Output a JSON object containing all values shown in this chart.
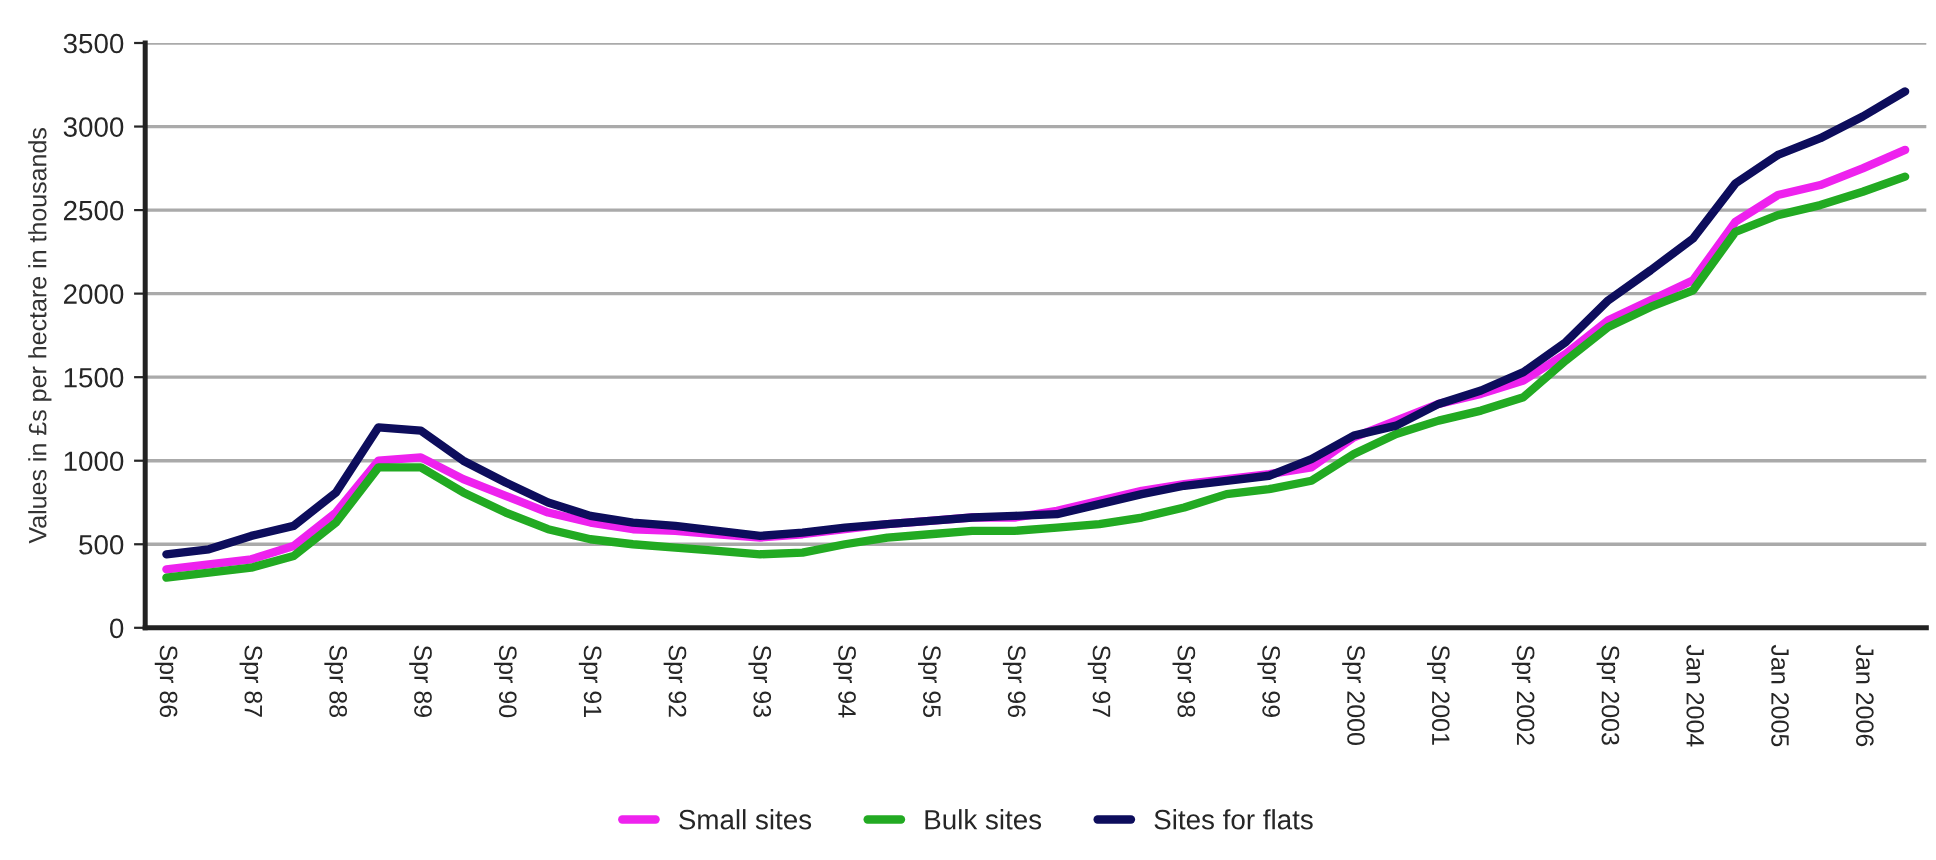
{
  "chart_data": {
    "type": "line",
    "ylabel": "Values in £s per hectare in thousands",
    "categories": [
      "Spr 86",
      null,
      "Spr 87",
      null,
      "Spr 88",
      null,
      "Spr 89",
      null,
      "Spr 90",
      null,
      "Spr 91",
      null,
      "Spr 92",
      null,
      "Spr 93",
      null,
      "Spr 94",
      null,
      "Spr 95",
      null,
      "Spr 96",
      null,
      "Spr 97",
      null,
      "Spr 98",
      null,
      "Spr 99",
      null,
      "Spr 2000",
      null,
      "Spr 2001",
      null,
      "Spr 2002",
      null,
      "Spr 2003",
      null,
      "Jan 2004",
      null,
      "Jan 2005",
      null,
      "Jan 2006",
      null
    ],
    "series": [
      {
        "name": "Small sites",
        "color": "#ee22ee",
        "values": [
          350,
          380,
          410,
          490,
          690,
          1000,
          1020,
          890,
          790,
          690,
          630,
          590,
          580,
          560,
          540,
          560,
          590,
          620,
          640,
          660,
          660,
          700,
          760,
          820,
          860,
          890,
          920,
          960,
          1140,
          1240,
          1340,
          1400,
          1480,
          1640,
          1840,
          1960,
          2080,
          2430,
          2590,
          2650,
          2750,
          2860
        ]
      },
      {
        "name": "Bulk sites",
        "color": "#22aa22",
        "values": [
          300,
          330,
          360,
          430,
          630,
          960,
          960,
          810,
          690,
          590,
          530,
          500,
          480,
          460,
          440,
          450,
          500,
          540,
          560,
          580,
          580,
          600,
          620,
          660,
          720,
          800,
          830,
          880,
          1040,
          1160,
          1240,
          1300,
          1380,
          1600,
          1800,
          1920,
          2020,
          2370,
          2470,
          2530,
          2610,
          2700
        ]
      },
      {
        "name": "Sites for flats",
        "color": "#0d0d5c",
        "values": [
          440,
          470,
          550,
          610,
          810,
          1200,
          1180,
          1000,
          870,
          750,
          670,
          630,
          610,
          580,
          550,
          570,
          600,
          620,
          640,
          660,
          670,
          680,
          740,
          800,
          850,
          880,
          910,
          1010,
          1150,
          1210,
          1340,
          1420,
          1530,
          1710,
          1960,
          2140,
          2330,
          2660,
          2830,
          2930,
          3060,
          3210
        ]
      }
    ],
    "ylim": [
      0,
      3500
    ],
    "yticks": [
      0,
      500,
      1000,
      1500,
      2000,
      2500,
      3000,
      3500
    ],
    "grid": "y",
    "legend": "bottom",
    "marker": "none",
    "line_style": "solid"
  }
}
